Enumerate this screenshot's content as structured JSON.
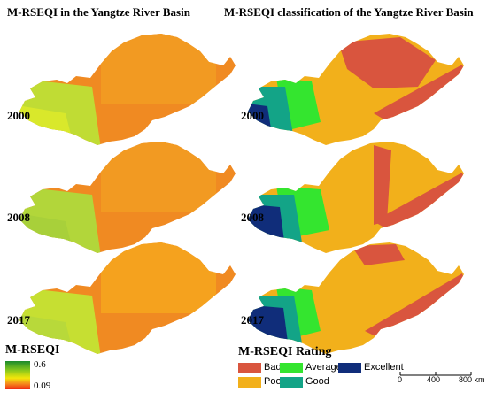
{
  "titles": {
    "left": "M-RSEQI in the Yangtze River Basin",
    "right": "M-RSEQI classification of the Yangtze River Basin"
  },
  "years": [
    "2000",
    "2008",
    "2017"
  ],
  "continuous_legend": {
    "title": "M-RSEQI",
    "max_label": "0.6",
    "min_label": "0.09",
    "colors": [
      "#1b8a2c",
      "#7ec41e",
      "#f2e70b",
      "#f58a1c",
      "#ef2a14"
    ]
  },
  "class_legend": {
    "title": "M-RSEQI Rating",
    "items": [
      {
        "label": "Bad",
        "color": "#d9553e"
      },
      {
        "label": "Average",
        "color": "#34e52f"
      },
      {
        "label": "Excellent",
        "color": "#102d7a"
      },
      {
        "label": "Poor",
        "color": "#f2b01b"
      },
      {
        "label": "Good",
        "color": "#13a487"
      }
    ]
  },
  "scale_bar": {
    "ticks": [
      "0",
      "400",
      "800 km"
    ]
  },
  "colors": {
    "cont_east": "#f08a22",
    "cont_mid": "#f5a21e",
    "cont_west": "#b2d63a",
    "cont_west_light": "#d9e82b",
    "cls_poor": "#f2b01b",
    "cls_bad": "#d9553e",
    "cls_good": "#13a487",
    "cls_average": "#34e52f",
    "cls_excellent": "#102d7a"
  }
}
